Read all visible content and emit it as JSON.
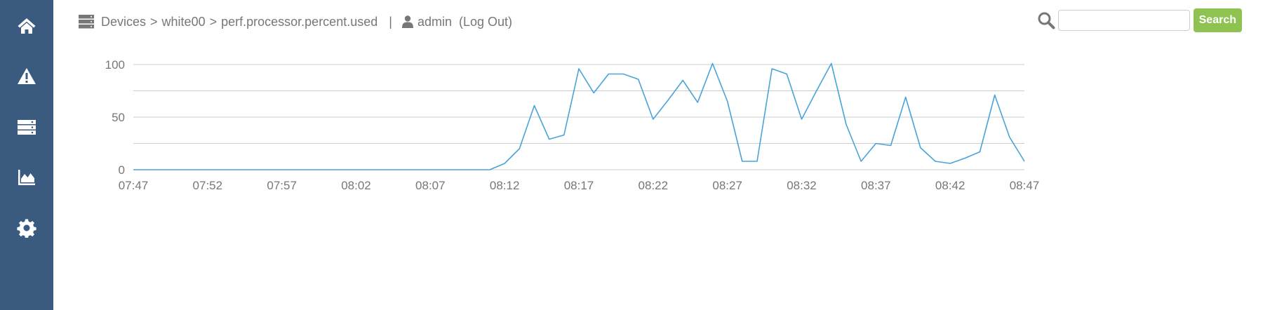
{
  "nav": [
    {
      "name": "home-icon",
      "icon": "home"
    },
    {
      "name": "alerts-icon",
      "icon": "warning"
    },
    {
      "name": "devices-icon",
      "icon": "server"
    },
    {
      "name": "graphs-icon",
      "icon": "area-chart"
    },
    {
      "name": "settings-icon",
      "icon": "gear"
    }
  ],
  "breadcrumb": {
    "root": "Devices",
    "device": "white00",
    "metric": "perf.processor.percent.used",
    "separator": ">",
    "pipe": "|"
  },
  "user": {
    "name": "admin",
    "logout": "(Log Out)"
  },
  "search": {
    "value": "",
    "placeholder": "",
    "button": "Search"
  },
  "colors": {
    "sidebar": "#3b5a80",
    "accent_button": "#8ec351",
    "series_line": "#4aa3d8",
    "grid": "#cccccc"
  },
  "chart_data": {
    "type": "line",
    "title": "",
    "xlabel": "",
    "ylabel": "",
    "ylim": [
      0,
      100
    ],
    "yticks": [
      0,
      50,
      100
    ],
    "grid": true,
    "x_tick_labels": [
      "07:47",
      "07:52",
      "07:57",
      "08:02",
      "08:07",
      "08:12",
      "08:17",
      "08:22",
      "08:27",
      "08:32",
      "08:37",
      "08:42",
      "08:47"
    ],
    "series": [
      {
        "x": [
          "07:47",
          "07:48",
          "07:49",
          "07:50",
          "07:51",
          "07:52",
          "07:53",
          "07:54",
          "07:55",
          "07:56",
          "07:57",
          "07:58",
          "07:59",
          "08:00",
          "08:01",
          "08:02",
          "08:03",
          "08:04",
          "08:05",
          "08:06",
          "08:07",
          "08:08",
          "08:09",
          "08:10",
          "08:11",
          "08:12",
          "08:13",
          "08:14",
          "08:15",
          "08:16",
          "08:17",
          "08:18",
          "08:19",
          "08:20",
          "08:21",
          "08:22",
          "08:23",
          "08:24",
          "08:25",
          "08:26",
          "08:27",
          "08:28",
          "08:29",
          "08:30",
          "08:31",
          "08:32",
          "08:33",
          "08:34",
          "08:35",
          "08:36",
          "08:37",
          "08:38",
          "08:39",
          "08:40",
          "08:41",
          "08:42",
          "08:43",
          "08:44",
          "08:45",
          "08:46",
          "08:47"
        ],
        "values": [
          0,
          0,
          0,
          0,
          0,
          0,
          0,
          0,
          0,
          0,
          0,
          0,
          0,
          0,
          0,
          0,
          0,
          0,
          0,
          0,
          0,
          0,
          0,
          0,
          0,
          6,
          20,
          61,
          29,
          33,
          96,
          73,
          91,
          91,
          86,
          48,
          66,
          85,
          64,
          101,
          65,
          8,
          8,
          96,
          91,
          48,
          75,
          101,
          43,
          8,
          25,
          23,
          69,
          21,
          8,
          6,
          11,
          17,
          71,
          31,
          8
        ]
      }
    ]
  }
}
